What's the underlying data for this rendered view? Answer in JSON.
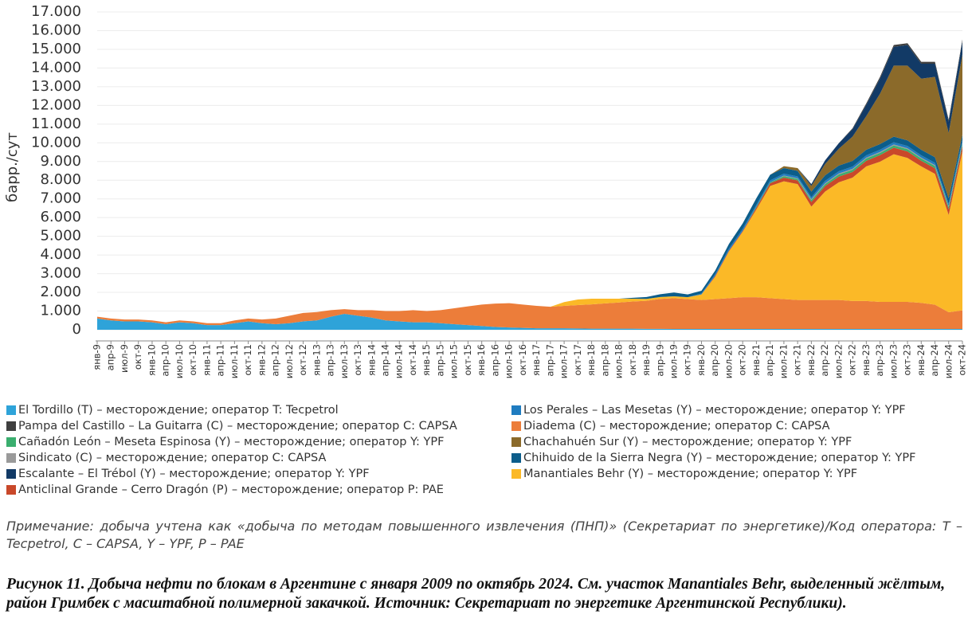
{
  "chart_data": {
    "type": "stacked_area",
    "y_label": "барр./сут",
    "ylim": [
      0,
      17000
    ],
    "yticks": [
      0,
      {
        "value": 1000,
        "label": "1.000"
      },
      {
        "value": 2000,
        "label": "2.000"
      },
      {
        "value": 3000,
        "label": "3.000"
      },
      {
        "value": 4000,
        "label": "4.000"
      },
      {
        "value": 5000,
        "label": "5.000"
      },
      {
        "value": 6000,
        "label": "6.000"
      },
      {
        "value": 7000,
        "label": "7.000"
      },
      {
        "value": 8000,
        "label": "8.000"
      },
      {
        "value": 9000,
        "label": "9.000"
      },
      {
        "value": 10000,
        "label": "10.000"
      },
      {
        "value": 11000,
        "label": "11.000"
      },
      {
        "value": 12000,
        "label": "12.000"
      },
      {
        "value": 13000,
        "label": "13.000"
      },
      {
        "value": 14000,
        "label": "14.000"
      },
      {
        "value": 15000,
        "label": "15.000"
      },
      {
        "value": 16000,
        "label": "16.000"
      },
      {
        "value": 17000,
        "label": "17.000"
      }
    ],
    "grid": true,
    "categories": [
      "янв-9",
      "апр-9",
      "июл-9",
      "окт-9",
      "янв-10",
      "апр-10",
      "июл-10",
      "окт-10",
      "янв-11",
      "апр-11",
      "июл-11",
      "окт-11",
      "янв-12",
      "апр-12",
      "июл-12",
      "окт-12",
      "янв-13",
      "апр-13",
      "июл-13",
      "окт-13",
      "янв-14",
      "апр-14",
      "июл-14",
      "окт-14",
      "янв-15",
      "апр-15",
      "июл-15",
      "окт-15",
      "янв-16",
      "апр-16",
      "июл-16",
      "окт-16",
      "янв-17",
      "апр-17",
      "июл-17",
      "окт-17",
      "янв-18",
      "апр-18",
      "июл-18",
      "окт-18",
      "янв-19",
      "апр-19",
      "июл-19",
      "окт-19",
      "янв-20",
      "апр-20",
      "июл-20",
      "окт-20",
      "янв-21",
      "апр-21",
      "июл-21",
      "окт-21",
      "янв-22",
      "апр-22",
      "июл-22",
      "окт-22",
      "янв-23",
      "апр-23",
      "июл-23",
      "окт-23",
      "янв-24",
      "апр-24",
      "июл-24",
      "окт-24"
    ],
    "series": [
      {
        "name": "El Tordillo (T) – месторождение; оператор T: Tecpetrol",
        "color": "#2ea3d9",
        "values": [
          600,
          500,
          450,
          450,
          400,
          300,
          400,
          350,
          250,
          250,
          350,
          450,
          350,
          300,
          350,
          450,
          500,
          700,
          850,
          750,
          650,
          500,
          450,
          400,
          400,
          350,
          300,
          250,
          200,
          150,
          120,
          100,
          80,
          80,
          80,
          70,
          60,
          60,
          60,
          60,
          50,
          50,
          40,
          40,
          40,
          40,
          40,
          40,
          40,
          40,
          40,
          40,
          40,
          40,
          40,
          40,
          40,
          40,
          40,
          40,
          40,
          40,
          40,
          40
        ]
      },
      {
        "name": "Los Perales – Las Mesetas (Y) – месторождение; оператор Y: YPF",
        "color": "#1f7cc0",
        "values": [
          0,
          0,
          0,
          0,
          0,
          0,
          0,
          0,
          0,
          0,
          0,
          0,
          0,
          0,
          0,
          0,
          0,
          0,
          0,
          0,
          0,
          0,
          0,
          0,
          0,
          0,
          0,
          0,
          0,
          0,
          0,
          0,
          0,
          0,
          0,
          0,
          0,
          0,
          0,
          0,
          0,
          0,
          0,
          0,
          50,
          80,
          100,
          100,
          100,
          100,
          100,
          100,
          100,
          120,
          120,
          120,
          120,
          120,
          120,
          120,
          120,
          120,
          120,
          120
        ]
      },
      {
        "name": "Pampa del Castillo – La Guitarra (C) – месторождение; оператор C: CAPSA",
        "color": "#3f3f3f",
        "values": [
          0,
          0,
          0,
          0,
          0,
          0,
          0,
          0,
          0,
          0,
          0,
          0,
          0,
          0,
          0,
          0,
          0,
          0,
          0,
          0,
          0,
          0,
          0,
          0,
          0,
          0,
          0,
          0,
          0,
          0,
          0,
          0,
          0,
          0,
          0,
          0,
          0,
          0,
          0,
          0,
          0,
          0,
          0,
          0,
          0,
          0,
          0,
          0,
          0,
          0,
          0,
          0,
          0,
          0,
          0,
          50,
          80,
          100,
          100,
          100,
          100,
          100,
          100,
          100
        ]
      },
      {
        "name": "Diadema (C) – месторождение; оператор C: CAPSA",
        "color": "#ec7d3a",
        "values": [
          100,
          100,
          100,
          100,
          100,
          100,
          100,
          100,
          100,
          100,
          150,
          150,
          200,
          300,
          400,
          450,
          450,
          350,
          250,
          300,
          400,
          500,
          550,
          650,
          600,
          700,
          850,
          1000,
          1150,
          1250,
          1300,
          1250,
          1200,
          1150,
          1200,
          1250,
          1300,
          1350,
          1400,
          1450,
          1500,
          1600,
          1650,
          1600,
          1550,
          1600,
          1650,
          1700,
          1700,
          1650,
          1600,
          1550,
          1550,
          1550,
          1550,
          1500,
          1500,
          1450,
          1450,
          1450,
          1400,
          1300,
          900,
          1000
        ]
      },
      {
        "name": "Cañadón León – Meseta Espinosa (Y) – месторождение; оператор Y: YPF",
        "color": "#3aae6e",
        "values": [
          0,
          0,
          0,
          0,
          0,
          0,
          0,
          0,
          0,
          0,
          0,
          0,
          0,
          0,
          0,
          0,
          0,
          0,
          0,
          0,
          0,
          0,
          0,
          0,
          0,
          0,
          0,
          0,
          0,
          0,
          0,
          0,
          0,
          0,
          0,
          0,
          0,
          0,
          0,
          0,
          0,
          0,
          0,
          0,
          0,
          0,
          0,
          0,
          50,
          50,
          80,
          80,
          100,
          100,
          120,
          120,
          120,
          120,
          120,
          120,
          120,
          120,
          120,
          120
        ]
      },
      {
        "name": "Chachahuén Sur (Y) – месторождение; оператор Y: YPF",
        "color": "#8b6a2a",
        "values": [
          0,
          0,
          0,
          0,
          0,
          0,
          0,
          0,
          0,
          0,
          0,
          0,
          0,
          0,
          0,
          0,
          0,
          0,
          0,
          0,
          0,
          0,
          0,
          0,
          0,
          0,
          0,
          0,
          0,
          0,
          0,
          0,
          0,
          0,
          0,
          0,
          0,
          0,
          0,
          0,
          0,
          0,
          0,
          0,
          0,
          0,
          0,
          0,
          0,
          0,
          100,
          150,
          300,
          600,
          900,
          1300,
          1800,
          2700,
          3800,
          4000,
          3800,
          4300,
          3500,
          4300
        ]
      },
      {
        "name": "Sindicato (C) – месторождение; оператор C: CAPSA",
        "color": "#9a9a9a",
        "values": [
          0,
          0,
          0,
          0,
          0,
          0,
          0,
          0,
          0,
          0,
          0,
          0,
          0,
          0,
          0,
          0,
          0,
          0,
          0,
          0,
          0,
          0,
          0,
          0,
          0,
          0,
          0,
          0,
          0,
          0,
          0,
          0,
          0,
          0,
          0,
          0,
          0,
          0,
          0,
          0,
          0,
          0,
          0,
          0,
          0,
          0,
          0,
          0,
          0,
          0,
          30,
          30,
          50,
          50,
          50,
          50,
          50,
          50,
          50,
          50,
          50,
          50,
          50,
          50
        ]
      },
      {
        "name": "Chihuido de la Sierra Negra (Y) – месторождение; оператор Y: YPF",
        "color": "#0c5d8a",
        "values": [
          0,
          0,
          0,
          0,
          0,
          0,
          0,
          0,
          0,
          0,
          0,
          0,
          0,
          0,
          0,
          0,
          0,
          0,
          0,
          0,
          0,
          0,
          0,
          0,
          0,
          0,
          0,
          0,
          0,
          0,
          0,
          0,
          0,
          0,
          0,
          0,
          0,
          0,
          0,
          50,
          100,
          150,
          200,
          150,
          150,
          200,
          250,
          300,
          350,
          300,
          300,
          300,
          300,
          300,
          300,
          300,
          300,
          300,
          300,
          300,
          300,
          300,
          300,
          300
        ]
      },
      {
        "name": "Escalante – El Trébol (Y) – месторождение; оператор Y: YPF",
        "color": "#123a66",
        "values": [
          0,
          0,
          0,
          0,
          0,
          0,
          0,
          0,
          0,
          0,
          0,
          0,
          0,
          0,
          0,
          0,
          0,
          0,
          0,
          0,
          0,
          0,
          0,
          0,
          0,
          0,
          0,
          0,
          0,
          0,
          0,
          0,
          0,
          0,
          0,
          0,
          0,
          0,
          0,
          0,
          0,
          0,
          0,
          0,
          0,
          0,
          0,
          0,
          0,
          0,
          0,
          0,
          100,
          200,
          300,
          400,
          600,
          800,
          1000,
          1100,
          800,
          700,
          600,
          700
        ]
      },
      {
        "name": "Manantiales Behr (Y) – месторождение; оператор Y: YPF",
        "color": "#fbb927",
        "values": [
          0,
          0,
          0,
          0,
          0,
          0,
          0,
          0,
          0,
          0,
          0,
          0,
          0,
          0,
          0,
          0,
          0,
          0,
          0,
          0,
          0,
          0,
          0,
          0,
          0,
          0,
          0,
          0,
          0,
          0,
          0,
          0,
          0,
          0,
          200,
          300,
          300,
          250,
          200,
          150,
          100,
          100,
          100,
          100,
          300,
          1200,
          2500,
          3500,
          4700,
          6000,
          6300,
          6200,
          5000,
          5800,
          6300,
          6600,
          7200,
          7500,
          7900,
          7700,
          7300,
          7000,
          5200,
          8500
        ]
      },
      {
        "name": "Anticlinal Grande – Cerro Dragón (P) – месторождение; оператор P: PAE",
        "color": "#c9482a",
        "values": [
          0,
          0,
          0,
          0,
          0,
          0,
          0,
          0,
          0,
          0,
          0,
          0,
          0,
          0,
          0,
          0,
          0,
          0,
          0,
          0,
          0,
          0,
          0,
          0,
          0,
          0,
          0,
          0,
          0,
          0,
          0,
          0,
          0,
          0,
          0,
          0,
          0,
          0,
          0,
          0,
          0,
          0,
          0,
          0,
          0,
          50,
          50,
          50,
          100,
          150,
          200,
          200,
          250,
          300,
          300,
          300,
          300,
          350,
          350,
          350,
          300,
          300,
          300,
          300
        ]
      }
    ],
    "note": "Примечание: добыча учтена как «добыча по методам повышенного извлечения (ПНП)» (Секретариат по энергетике)/Код оператора: T – Tecpetrol, C – CAPSA, Y – YPF, P – PAE",
    "caption": "Рисунок 11. Добыча нефти по блокам в Аргентине с января 2009 по октябрь 2024. См. участок Manantiales Behr, выделенный жёлтым, район Гримбек с масштабной полимерной закачкой. Источник: Секретариат по энергетике Аргентинской Республики)."
  }
}
